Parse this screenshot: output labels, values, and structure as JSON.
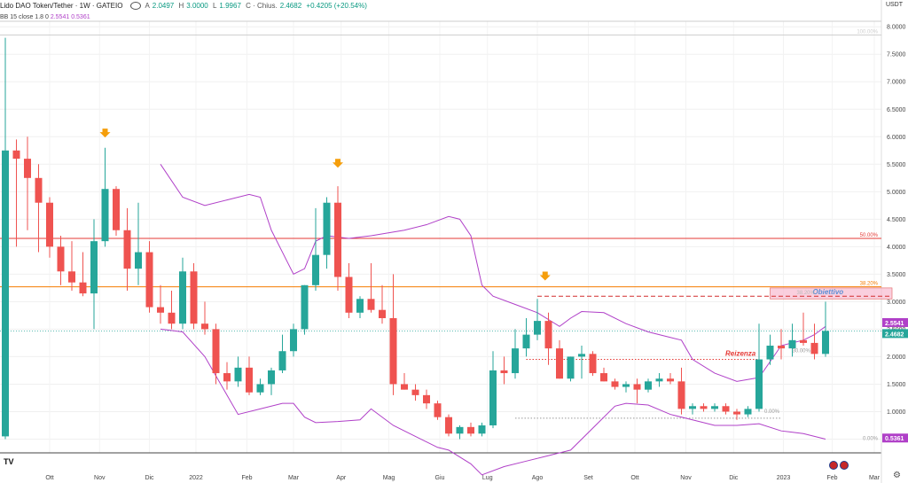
{
  "header": {
    "symbol": "Lido DAO Token/Tether · 1W · GATEIO",
    "open_label": "A",
    "open": "2.0497",
    "high_label": "H",
    "high": "3.0000",
    "low_label": "L",
    "low": "1.9967",
    "close_label": "C · Chius.",
    "close": "2.4682",
    "change": "+0.4205 (+20.54%)"
  },
  "indicator": {
    "label": "BB 15 close 1.8 0",
    "upper": "2.5541",
    "lower": "0.5361"
  },
  "currency_label": "USDT",
  "colors": {
    "up": "#26a69a",
    "down": "#ef5350",
    "bb": "#b040c8",
    "fib_orange": "#f57c00",
    "fib_red": "#e53935",
    "target": "#f8bbd0"
  },
  "chart_data": {
    "type": "candlestick",
    "ylim": [
      0.25,
      8.1
    ],
    "yticks": [
      "8.0000",
      "7.5000",
      "7.0000",
      "6.5000",
      "6.0000",
      "5.5000",
      "5.0000",
      "4.5000",
      "4.0000",
      "3.5000",
      "3.0000",
      "2.5000",
      "2.0000",
      "1.5000",
      "1.0000",
      "0.5000"
    ],
    "xticks": [
      {
        "label": "Ott",
        "week": 4
      },
      {
        "label": "Nov",
        "week": 8.5
      },
      {
        "label": "Dic",
        "week": 13
      },
      {
        "label": "2022",
        "week": 17.2
      },
      {
        "label": "Feb",
        "week": 21.8
      },
      {
        "label": "Mar",
        "week": 26
      },
      {
        "label": "Apr",
        "week": 30.3
      },
      {
        "label": "Mag",
        "week": 34.6
      },
      {
        "label": "Giu",
        "week": 39.2
      },
      {
        "label": "Lug",
        "week": 43.5
      },
      {
        "label": "Ago",
        "week": 48
      },
      {
        "label": "Set",
        "week": 52.6
      },
      {
        "label": "Ott",
        "week": 56.8
      },
      {
        "label": "Nov",
        "week": 61.4
      },
      {
        "label": "Dic",
        "week": 65.7
      },
      {
        "label": "2023",
        "week": 70.2
      },
      {
        "label": "Feb",
        "week": 74.6
      },
      {
        "label": "Mar",
        "week": 78.4
      }
    ],
    "candles": [
      {
        "o": 0.55,
        "h": 7.8,
        "l": 0.5,
        "c": 5.75
      },
      {
        "o": 5.75,
        "h": 5.95,
        "l": 4.0,
        "c": 5.6
      },
      {
        "o": 5.6,
        "h": 6.0,
        "l": 4.3,
        "c": 5.25
      },
      {
        "o": 5.25,
        "h": 5.5,
        "l": 3.9,
        "c": 4.8
      },
      {
        "o": 4.8,
        "h": 4.9,
        "l": 3.8,
        "c": 4.0
      },
      {
        "o": 4.0,
        "h": 4.2,
        "l": 3.3,
        "c": 3.55
      },
      {
        "o": 3.55,
        "h": 4.1,
        "l": 3.2,
        "c": 3.35
      },
      {
        "o": 3.35,
        "h": 3.9,
        "l": 3.1,
        "c": 3.15
      },
      {
        "o": 3.15,
        "h": 4.5,
        "l": 2.5,
        "c": 4.1
      },
      {
        "o": 4.1,
        "h": 5.8,
        "l": 4.0,
        "c": 5.05
      },
      {
        "o": 5.05,
        "h": 5.1,
        "l": 4.2,
        "c": 4.3
      },
      {
        "o": 4.3,
        "h": 4.7,
        "l": 3.2,
        "c": 3.6
      },
      {
        "o": 3.6,
        "h": 4.8,
        "l": 3.3,
        "c": 3.9
      },
      {
        "o": 3.9,
        "h": 4.1,
        "l": 2.8,
        "c": 2.9
      },
      {
        "o": 2.9,
        "h": 3.3,
        "l": 2.6,
        "c": 2.8
      },
      {
        "o": 2.8,
        "h": 3.2,
        "l": 2.5,
        "c": 2.6
      },
      {
        "o": 2.6,
        "h": 3.8,
        "l": 2.5,
        "c": 3.55
      },
      {
        "o": 3.55,
        "h": 3.7,
        "l": 2.5,
        "c": 2.6
      },
      {
        "o": 2.6,
        "h": 3.0,
        "l": 2.4,
        "c": 2.5
      },
      {
        "o": 2.5,
        "h": 2.6,
        "l": 1.5,
        "c": 1.7
      },
      {
        "o": 1.7,
        "h": 1.9,
        "l": 1.4,
        "c": 1.55
      },
      {
        "o": 1.55,
        "h": 2.0,
        "l": 1.45,
        "c": 1.8
      },
      {
        "o": 1.8,
        "h": 2.0,
        "l": 1.3,
        "c": 1.35
      },
      {
        "o": 1.35,
        "h": 1.6,
        "l": 1.3,
        "c": 1.5
      },
      {
        "o": 1.5,
        "h": 1.8,
        "l": 1.3,
        "c": 1.75
      },
      {
        "o": 1.75,
        "h": 2.4,
        "l": 1.7,
        "c": 2.1
      },
      {
        "o": 2.1,
        "h": 2.6,
        "l": 2.0,
        "c": 2.5
      },
      {
        "o": 2.5,
        "h": 3.3,
        "l": 2.4,
        "c": 3.3
      },
      {
        "o": 3.3,
        "h": 4.7,
        "l": 3.2,
        "c": 3.85
      },
      {
        "o": 3.85,
        "h": 4.9,
        "l": 3.6,
        "c": 4.8
      },
      {
        "o": 4.8,
        "h": 5.1,
        "l": 3.2,
        "c": 3.45
      },
      {
        "o": 3.45,
        "h": 3.7,
        "l": 2.7,
        "c": 2.8
      },
      {
        "o": 2.8,
        "h": 3.1,
        "l": 2.7,
        "c": 3.05
      },
      {
        "o": 3.05,
        "h": 3.7,
        "l": 2.8,
        "c": 2.85
      },
      {
        "o": 2.85,
        "h": 3.3,
        "l": 2.6,
        "c": 2.7
      },
      {
        "o": 2.7,
        "h": 3.5,
        "l": 1.3,
        "c": 1.5
      },
      {
        "o": 1.5,
        "h": 1.7,
        "l": 1.4,
        "c": 1.4
      },
      {
        "o": 1.4,
        "h": 1.5,
        "l": 1.2,
        "c": 1.3
      },
      {
        "o": 1.3,
        "h": 1.4,
        "l": 1.05,
        "c": 1.15
      },
      {
        "o": 1.15,
        "h": 1.2,
        "l": 0.85,
        "c": 0.9
      },
      {
        "o": 0.9,
        "h": 0.95,
        "l": 0.55,
        "c": 0.6
      },
      {
        "o": 0.6,
        "h": 0.75,
        "l": 0.5,
        "c": 0.72
      },
      {
        "o": 0.72,
        "h": 0.8,
        "l": 0.55,
        "c": 0.6
      },
      {
        "o": 0.6,
        "h": 0.8,
        "l": 0.55,
        "c": 0.75
      },
      {
        "o": 0.75,
        "h": 2.1,
        "l": 0.7,
        "c": 1.75
      },
      {
        "o": 1.75,
        "h": 2.0,
        "l": 1.5,
        "c": 1.7
      },
      {
        "o": 1.7,
        "h": 2.5,
        "l": 1.6,
        "c": 2.15
      },
      {
        "o": 2.15,
        "h": 2.7,
        "l": 2.0,
        "c": 2.4
      },
      {
        "o": 2.4,
        "h": 3.05,
        "l": 2.3,
        "c": 2.65
      },
      {
        "o": 2.65,
        "h": 2.8,
        "l": 1.85,
        "c": 2.15
      },
      {
        "o": 2.15,
        "h": 2.3,
        "l": 1.6,
        "c": 1.6
      },
      {
        "o": 1.6,
        "h": 2.0,
        "l": 1.55,
        "c": 2.0
      },
      {
        "o": 2.0,
        "h": 2.2,
        "l": 1.6,
        "c": 2.05
      },
      {
        "o": 2.05,
        "h": 2.1,
        "l": 1.65,
        "c": 1.7
      },
      {
        "o": 1.7,
        "h": 1.8,
        "l": 1.55,
        "c": 1.55
      },
      {
        "o": 1.55,
        "h": 1.6,
        "l": 1.4,
        "c": 1.45
      },
      {
        "o": 1.45,
        "h": 1.55,
        "l": 1.35,
        "c": 1.5
      },
      {
        "o": 1.5,
        "h": 1.6,
        "l": 1.15,
        "c": 1.4
      },
      {
        "o": 1.4,
        "h": 1.6,
        "l": 1.35,
        "c": 1.55
      },
      {
        "o": 1.55,
        "h": 1.7,
        "l": 1.45,
        "c": 1.6
      },
      {
        "o": 1.6,
        "h": 1.7,
        "l": 1.5,
        "c": 1.55
      },
      {
        "o": 1.55,
        "h": 1.8,
        "l": 0.95,
        "c": 1.05
      },
      {
        "o": 1.05,
        "h": 1.15,
        "l": 0.95,
        "c": 1.1
      },
      {
        "o": 1.1,
        "h": 1.15,
        "l": 1.0,
        "c": 1.05
      },
      {
        "o": 1.05,
        "h": 1.15,
        "l": 1.0,
        "c": 1.1
      },
      {
        "o": 1.1,
        "h": 1.15,
        "l": 0.95,
        "c": 1.0
      },
      {
        "o": 1.0,
        "h": 1.05,
        "l": 0.85,
        "c": 0.95
      },
      {
        "o": 0.95,
        "h": 1.1,
        "l": 0.9,
        "c": 1.05
      },
      {
        "o": 1.05,
        "h": 2.6,
        "l": 1.0,
        "c": 1.95
      },
      {
        "o": 1.95,
        "h": 2.4,
        "l": 1.85,
        "c": 2.2
      },
      {
        "o": 2.2,
        "h": 2.5,
        "l": 1.95,
        "c": 2.15
      },
      {
        "o": 2.15,
        "h": 2.6,
        "l": 2.0,
        "c": 2.3
      },
      {
        "o": 2.3,
        "h": 2.8,
        "l": 2.2,
        "c": 2.25
      },
      {
        "o": 2.25,
        "h": 2.6,
        "l": 1.95,
        "c": 2.05
      },
      {
        "o": 2.05,
        "h": 3.0,
        "l": 1.9967,
        "c": 2.4682
      }
    ],
    "bb_upper": [
      [
        14,
        5.5
      ],
      [
        16,
        4.9
      ],
      [
        18,
        4.75
      ],
      [
        20,
        4.85
      ],
      [
        22,
        4.95
      ],
      [
        23,
        4.9
      ],
      [
        24,
        4.3
      ],
      [
        25,
        3.9
      ],
      [
        26,
        3.5
      ],
      [
        27,
        3.6
      ],
      [
        28,
        4.1
      ],
      [
        29,
        4.2
      ],
      [
        31,
        4.15
      ],
      [
        33,
        4.2
      ],
      [
        36,
        4.3
      ],
      [
        38,
        4.4
      ],
      [
        40,
        4.55
      ],
      [
        41,
        4.5
      ],
      [
        42,
        4.2
      ],
      [
        43,
        3.3
      ],
      [
        44,
        3.1
      ],
      [
        46,
        2.95
      ],
      [
        48,
        2.8
      ],
      [
        50,
        2.55
      ],
      [
        51,
        2.7
      ],
      [
        52,
        2.82
      ],
      [
        54,
        2.8
      ],
      [
        56,
        2.6
      ],
      [
        58,
        2.45
      ],
      [
        60,
        2.35
      ],
      [
        61,
        2.3
      ],
      [
        62,
        1.95
      ],
      [
        64,
        1.7
      ],
      [
        66,
        1.55
      ],
      [
        68,
        1.62
      ],
      [
        70,
        2.2
      ],
      [
        72,
        2.3
      ],
      [
        73,
        2.4
      ],
      [
        74,
        2.55
      ]
    ],
    "bb_lower": [
      [
        14,
        2.5
      ],
      [
        16,
        2.45
      ],
      [
        18,
        2.0
      ],
      [
        20,
        1.3
      ],
      [
        21,
        0.95
      ],
      [
        23,
        1.05
      ],
      [
        25,
        1.15
      ],
      [
        26,
        1.15
      ],
      [
        27,
        0.9
      ],
      [
        28,
        0.8
      ],
      [
        30,
        0.82
      ],
      [
        32,
        0.85
      ],
      [
        33,
        1.05
      ],
      [
        35,
        0.75
      ],
      [
        37,
        0.55
      ],
      [
        39,
        0.35
      ],
      [
        40,
        0.3
      ],
      [
        42,
        0.05
      ],
      [
        43,
        -0.15
      ],
      [
        45,
        0.0
      ],
      [
        47,
        0.1
      ],
      [
        49,
        0.2
      ],
      [
        51,
        0.3
      ],
      [
        53,
        0.7
      ],
      [
        55,
        1.1
      ],
      [
        56,
        1.15
      ],
      [
        58,
        1.12
      ],
      [
        60,
        0.95
      ],
      [
        62,
        0.85
      ],
      [
        64,
        0.75
      ],
      [
        66,
        0.75
      ],
      [
        68,
        0.78
      ],
      [
        70,
        0.65
      ],
      [
        72,
        0.6
      ],
      [
        74,
        0.5
      ]
    ],
    "fib_levels": [
      {
        "label": "100.00%",
        "value": 7.85,
        "color": "#cfcfcf"
      },
      {
        "label": "50.00%",
        "value": 4.15,
        "color": "#e53935"
      },
      {
        "label": "38.20%",
        "value": 3.27,
        "color": "#f57c00"
      },
      {
        "label": "0.00%",
        "value": 0.45,
        "color": "#9e9e9e"
      }
    ],
    "arrows": [
      {
        "week": 9,
        "value": 6.05
      },
      {
        "week": 30,
        "value": 5.5
      },
      {
        "week": 48.7,
        "value": 3.45
      }
    ],
    "resistance": {
      "label": "Reizenza",
      "value": 1.95,
      "from": 47,
      "to": 68
    },
    "target": {
      "label": "Obiettivo",
      "pct_label": "38.20%",
      "value_top": 3.25,
      "value_bottom": 3.05,
      "from": 69,
      "to": 80
    },
    "dashed_top": {
      "value": 3.1,
      "from": 48,
      "to": 80
    },
    "zero_line": {
      "label": "0.00%",
      "value": 0.88,
      "from": 46,
      "to": 70
    },
    "sub_label": {
      "label": "30.00%",
      "value": 2.05,
      "week": 71
    },
    "last_price": "2.4682",
    "bb_upper_tag": "2.5541",
    "bb_lower_tag": "0.5361"
  }
}
